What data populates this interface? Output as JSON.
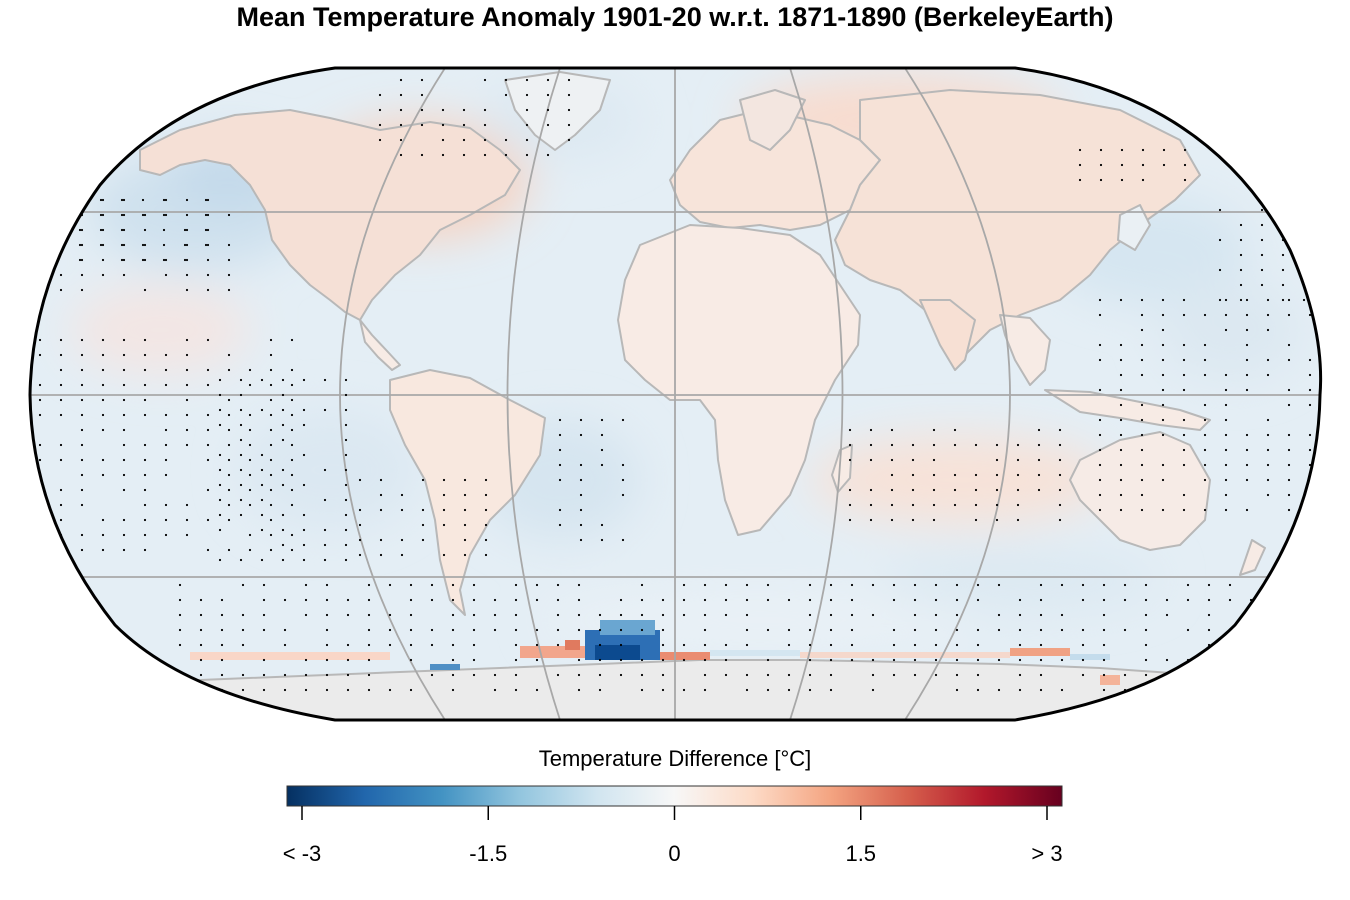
{
  "title": "Mean Temperature Anomaly 1901-20 w.r.t. 1871-1890 (BerkeleyEarth)",
  "legend": {
    "title": "Temperature Difference [°C]",
    "tick_labels": [
      "< -3",
      "-1.5",
      "0",
      "1.5",
      "> 3"
    ],
    "tick_values": [
      -3,
      -1.5,
      0,
      1.5,
      3
    ],
    "range": [
      -3,
      3
    ],
    "colormap": [
      "#053061",
      "#2166ac",
      "#4393c3",
      "#92c5de",
      "#d1e5f0",
      "#f7f7f7",
      "#fddbc7",
      "#f4a582",
      "#d6604d",
      "#b2182b",
      "#67001f"
    ]
  },
  "map": {
    "projection": "Robinson",
    "graticule": "30-degree meridians and parallels",
    "colors": {
      "ocean_base": "#e6eff5",
      "land_base": "#f8ece6",
      "coastline": "#b8b8b8",
      "graticule": "#a8a8a8",
      "antarctica": "#ebebeb",
      "outline": "#000000",
      "stipple": "#000000"
    }
  }
}
